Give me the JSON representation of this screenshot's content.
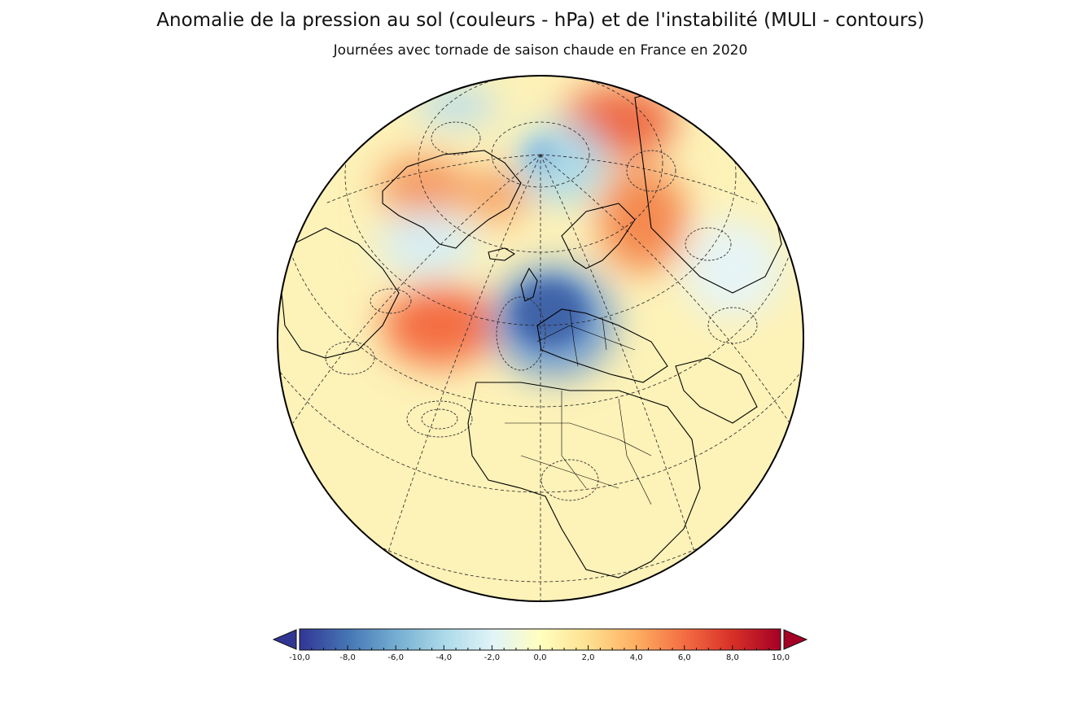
{
  "figure": {
    "title": "Anomalie de la pression au sol (couleurs - hPa) et de l'instabilité (MULI - contours)",
    "subtitle": "Journées avec tornade de saison chaude en France en 2020"
  },
  "colorbar": {
    "min": -10,
    "max": 10,
    "ticks": [
      "-10,0",
      "-8,0",
      "-6,0",
      "-4,0",
      "-2,0",
      "0,0",
      "2,0",
      "4,0",
      "6,0",
      "8,0",
      "10,0"
    ],
    "extend": "both",
    "colormap": [
      "#313695",
      "#4575b4",
      "#74add1",
      "#abd9e9",
      "#e0f3f8",
      "#ffffbf",
      "#fee090",
      "#fdae61",
      "#f46d43",
      "#d73027",
      "#a50026"
    ]
  },
  "map": {
    "projection": "orthographic",
    "center_region": "Europe / North Atlantic",
    "anomaly_features": [
      {
        "region": "France / Western Europe",
        "sign": "negative",
        "approx_hPa": -9
      },
      {
        "region": "Arctic Ocean",
        "sign": "negative",
        "approx_hPa": -4
      },
      {
        "region": "Central North Atlantic",
        "sign": "positive",
        "approx_hPa": 5
      },
      {
        "region": "Greenland",
        "sign": "positive",
        "approx_hPa": 4
      },
      {
        "region": "Russia (north)",
        "sign": "positive",
        "approx_hPa": 5
      },
      {
        "region": "Barents / Kara Sea",
        "sign": "positive",
        "approx_hPa": 6
      }
    ],
    "contour_style": "dashed"
  }
}
